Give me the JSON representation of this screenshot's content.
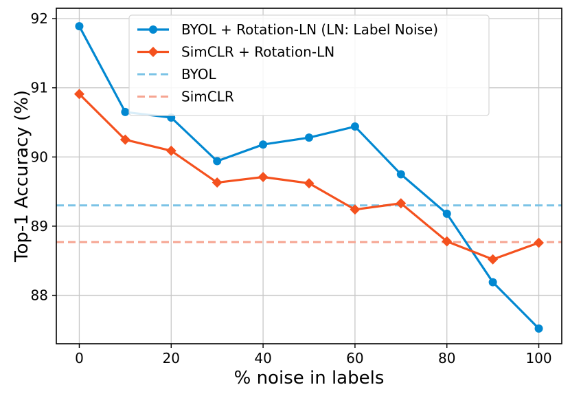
{
  "chart_data": {
    "type": "line",
    "xlabel": "% noise in labels",
    "ylabel": "Top-1 Accuracy (%)",
    "xlim": [
      -5,
      105
    ],
    "ylim": [
      87.3,
      92.15
    ],
    "xticks": [
      0,
      20,
      40,
      60,
      80,
      100
    ],
    "yticks": [
      88,
      89,
      90,
      91,
      92
    ],
    "grid": true,
    "legend_position": "top-center",
    "x": [
      0,
      10,
      20,
      30,
      40,
      50,
      60,
      70,
      80,
      90,
      100
    ],
    "series": [
      {
        "name": "BYOL + Rotation-LN (LN: Label Noise)",
        "color": "#0288D1",
        "marker": "circle",
        "style": "solid",
        "values": [
          91.89,
          90.65,
          90.57,
          89.94,
          90.18,
          90.28,
          90.44,
          89.75,
          89.18,
          88.19,
          87.52
        ]
      },
      {
        "name": "SimCLR + Rotation-LN",
        "color": "#F4511E",
        "marker": "diamond",
        "style": "solid",
        "values": [
          90.91,
          90.25,
          90.09,
          89.63,
          89.71,
          89.62,
          89.24,
          89.33,
          88.78,
          88.52,
          88.76
        ]
      },
      {
        "name": "BYOL",
        "color": "#7BC3E6",
        "style": "dashed",
        "constant": 89.3
      },
      {
        "name": "SimCLR",
        "color": "#F6A592",
        "style": "dashed",
        "constant": 88.77
      }
    ]
  }
}
